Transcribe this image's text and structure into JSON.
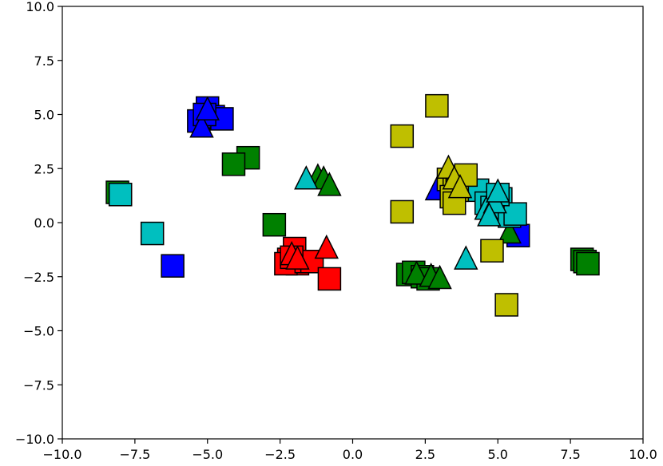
{
  "chart_data": {
    "type": "scatter",
    "xlim": [
      -10,
      10
    ],
    "ylim": [
      -10,
      10
    ],
    "grid": false,
    "x_ticks": [
      "−10.0",
      "−7.5",
      "−5.0",
      "−2.5",
      "0.0",
      "2.5",
      "5.0",
      "7.5",
      "10.0"
    ],
    "y_ticks": [
      "10.0",
      "7.5",
      "5.0",
      "2.5",
      "0.0",
      "−2.5",
      "−5.0",
      "−7.5",
      "−10.0"
    ],
    "x_tick_values": [
      -10,
      -7.5,
      -5,
      -2.5,
      0,
      2.5,
      5,
      7.5,
      10
    ],
    "y_tick_values": [
      10,
      7.5,
      5,
      2.5,
      0,
      -2.5,
      -5,
      -7.5,
      -10
    ],
    "colors": {
      "blue": "#0000ff",
      "green": "#008000",
      "cyan": "#00bfbf",
      "yellow": "#bfbf00",
      "red": "#ff0000"
    },
    "series": [
      {
        "color": "blue",
        "marker": "square",
        "points": [
          [
            -5.3,
            4.7
          ],
          [
            -5.0,
            5.3
          ],
          [
            -4.8,
            4.9
          ],
          [
            -4.5,
            4.8
          ],
          [
            -5.1,
            5.0
          ],
          [
            -6.2,
            -2.0
          ],
          [
            5.7,
            -0.6
          ]
        ]
      },
      {
        "color": "blue",
        "marker": "triangle",
        "points": [
          [
            -5.2,
            4.4
          ],
          [
            -5.0,
            5.2
          ],
          [
            2.9,
            1.5
          ]
        ]
      },
      {
        "color": "green",
        "marker": "square",
        "points": [
          [
            -8.0,
            1.3
          ],
          [
            -8.1,
            1.4
          ],
          [
            -3.6,
            3.0
          ],
          [
            -4.1,
            2.7
          ],
          [
            -2.7,
            -0.1
          ],
          [
            1.9,
            -2.4
          ],
          [
            2.1,
            -2.3
          ],
          [
            2.4,
            -2.5
          ],
          [
            2.6,
            -2.6
          ],
          [
            7.9,
            -1.7
          ],
          [
            8.0,
            -1.8
          ],
          [
            8.1,
            -1.9
          ]
        ]
      },
      {
        "color": "green",
        "marker": "triangle",
        "points": [
          [
            -1.2,
            2.1
          ],
          [
            -1.0,
            2.0
          ],
          [
            -0.8,
            1.7
          ],
          [
            2.2,
            -2.4
          ],
          [
            2.7,
            -2.5
          ],
          [
            3.0,
            -2.6
          ],
          [
            5.4,
            -0.5
          ]
        ]
      },
      {
        "color": "cyan",
        "marker": "square",
        "points": [
          [
            -8.0,
            1.3
          ],
          [
            -6.9,
            -0.5
          ],
          [
            4.3,
            1.5
          ],
          [
            4.6,
            0.9
          ],
          [
            4.8,
            0.7
          ],
          [
            5.1,
            1.1
          ],
          [
            5.4,
            0.3
          ],
          [
            5.6,
            0.4
          ],
          [
            5.0,
            1.3
          ]
        ]
      },
      {
        "color": "cyan",
        "marker": "triangle",
        "points": [
          [
            -1.6,
            2.0
          ],
          [
            3.9,
            -1.7
          ],
          [
            4.6,
            0.6
          ],
          [
            4.9,
            0.9
          ],
          [
            5.0,
            1.4
          ],
          [
            4.7,
            0.3
          ]
        ]
      },
      {
        "color": "yellow",
        "marker": "square",
        "points": [
          [
            2.9,
            5.4
          ],
          [
            1.7,
            4.0
          ],
          [
            1.7,
            0.5
          ],
          [
            3.3,
            2.0
          ],
          [
            3.5,
            1.8
          ],
          [
            3.6,
            1.5
          ],
          [
            3.4,
            1.2
          ],
          [
            3.5,
            0.9
          ],
          [
            3.9,
            2.2
          ],
          [
            4.8,
            -1.3
          ],
          [
            5.3,
            -3.8
          ]
        ]
      },
      {
        "color": "yellow",
        "marker": "triangle",
        "points": [
          [
            3.3,
            2.5
          ],
          [
            3.5,
            2.0
          ],
          [
            3.7,
            1.6
          ]
        ]
      },
      {
        "color": "red",
        "marker": "square",
        "points": [
          [
            -2.0,
            -1.2
          ],
          [
            -2.2,
            -1.7
          ],
          [
            -1.9,
            -1.9
          ],
          [
            -2.3,
            -1.9
          ],
          [
            -1.6,
            -1.8
          ],
          [
            -1.4,
            -1.8
          ],
          [
            -0.8,
            -2.6
          ],
          [
            -2.1,
            -1.6
          ]
        ]
      },
      {
        "color": "red",
        "marker": "triangle",
        "points": [
          [
            -2.1,
            -1.5
          ],
          [
            -1.9,
            -1.7
          ],
          [
            -0.9,
            -1.2
          ]
        ]
      }
    ]
  }
}
